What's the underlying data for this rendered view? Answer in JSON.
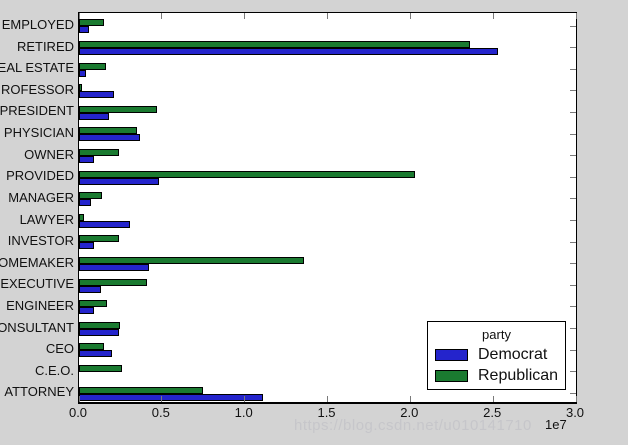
{
  "figure": {
    "background": "#d3d3d3",
    "plot_background": "#ffffff",
    "watermark": "https://blog.csdn.net/u010141710"
  },
  "chart_data": {
    "type": "bar",
    "orientation": "horizontal",
    "title": "",
    "xlabel": "",
    "ylabel": "",
    "x_offset_label": "1e7",
    "value_unit": "1e7",
    "xlim": [
      0.0,
      3.0
    ],
    "x_tick_labels": [
      "0.0",
      "0.5",
      "1.0",
      "1.5",
      "2.0",
      "2.5",
      "3.0"
    ],
    "grid": false,
    "categories": [
      "EMPLOYED",
      "RETIRED",
      "EAL ESTATE",
      "ROFESSOR",
      "PRESIDENT",
      "PHYSICIAN",
      "OWNER",
      "PROVIDED",
      "MANAGER",
      "LAWYER",
      "INVESTOR",
      "OMEMAKER",
      "EXECUTIVE",
      "ENGINEER",
      "ONSULTANT",
      "CEO",
      "C.E.O.",
      "ATTORNEY"
    ],
    "series": [
      {
        "name": "Democrat",
        "color": "#2424cc",
        "values": [
          0.06,
          2.53,
          0.04,
          0.21,
          0.18,
          0.37,
          0.09,
          0.48,
          0.07,
          0.31,
          0.09,
          0.42,
          0.13,
          0.09,
          0.24,
          0.2,
          0.0,
          1.11
        ]
      },
      {
        "name": "Republican",
        "color": "#1a7a30",
        "values": [
          0.15,
          2.36,
          0.16,
          0.02,
          0.47,
          0.35,
          0.24,
          2.03,
          0.14,
          0.03,
          0.24,
          1.36,
          0.41,
          0.17,
          0.25,
          0.15,
          0.26,
          0.75
        ]
      }
    ],
    "legend": {
      "title": "party",
      "position": "lower right inside"
    }
  }
}
